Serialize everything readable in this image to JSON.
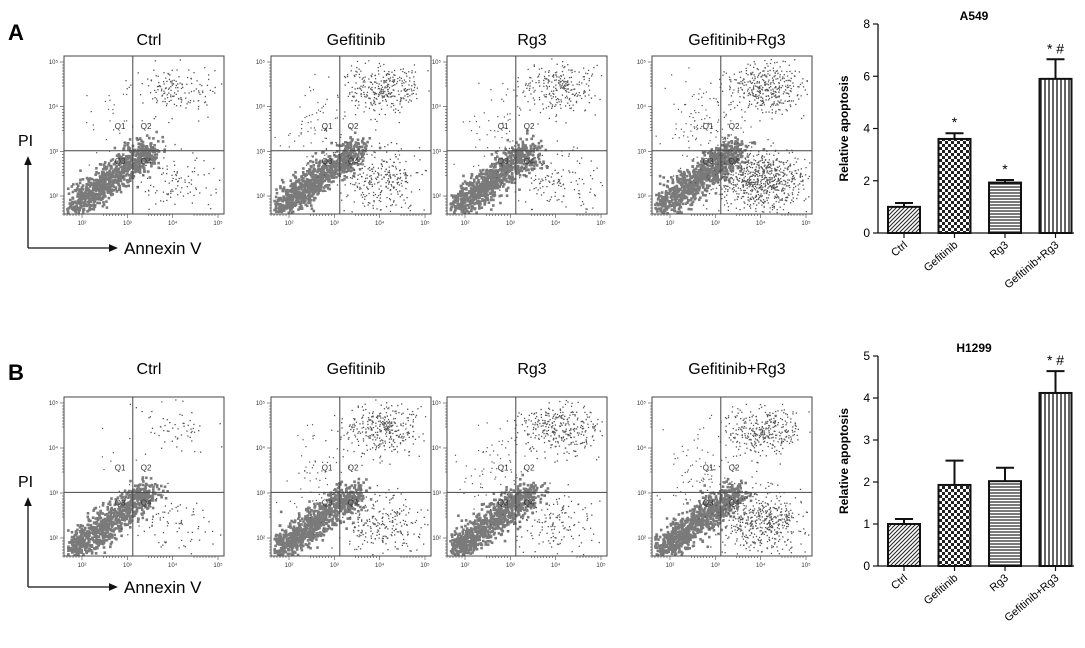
{
  "chart_data": [
    {
      "panel": "A",
      "type": "scatter",
      "subtype": "flow-cytometry-dot-plots",
      "plots": [
        {
          "title": "Ctrl",
          "quadrants": [
            "Q1",
            "Q2",
            "Q3",
            "Q4"
          ]
        },
        {
          "title": "Gefitinib",
          "quadrants": [
            "Q1",
            "Q2",
            "Q3",
            "Q4"
          ]
        },
        {
          "title": "Rg3",
          "quadrants": [
            "Q1",
            "Q2",
            "Q3",
            "Q4"
          ]
        },
        {
          "title": "Gefitinib+Rg3",
          "quadrants": [
            "Q1",
            "Q2",
            "Q3",
            "Q4"
          ]
        }
      ],
      "xlabel": "Annexin V",
      "ylabel": "PI",
      "xtick_labels": [
        "10²",
        "10³",
        "10⁴",
        "10⁵"
      ],
      "ytick_labels": [
        "10²",
        "10³",
        "10⁴",
        "10⁵"
      ]
    },
    {
      "panel": "A",
      "type": "bar",
      "title": "A549",
      "ylabel": "Relative apoptosis",
      "categories": [
        "Ctrl",
        "Gefitinib",
        "Rg3",
        "Gefitinib+Rg3"
      ],
      "values": [
        1.0,
        3.6,
        1.93,
        5.9
      ],
      "errors": [
        0.15,
        0.22,
        0.1,
        0.75
      ],
      "annotations": [
        "",
        "*",
        "*",
        "* #"
      ],
      "ylim": [
        0,
        8
      ],
      "yticks": [
        0,
        2,
        4,
        6,
        8
      ],
      "patterns": [
        "diagonal",
        "checker",
        "horizontal",
        "vertical"
      ]
    },
    {
      "panel": "B",
      "type": "scatter",
      "subtype": "flow-cytometry-dot-plots",
      "plots": [
        {
          "title": "Ctrl",
          "quadrants": [
            "Q1",
            "Q2",
            "Q3",
            "Q4"
          ]
        },
        {
          "title": "Gefitinib",
          "quadrants": [
            "Q1",
            "Q2",
            "Q3",
            "Q4"
          ]
        },
        {
          "title": "Rg3",
          "quadrants": [
            "Q1",
            "Q2",
            "Q3",
            "Q4"
          ]
        },
        {
          "title": "Gefitinib+Rg3",
          "quadrants": [
            "Q1",
            "Q2",
            "Q3",
            "Q4"
          ]
        }
      ],
      "xlabel": "Annexin V",
      "ylabel": "PI",
      "xtick_labels": [
        "10²",
        "10³",
        "10⁴",
        "10⁵"
      ],
      "ytick_labels": [
        "10²",
        "10³",
        "10⁴",
        "10⁵"
      ]
    },
    {
      "panel": "B",
      "type": "bar",
      "title": "H1299",
      "ylabel": "Relative apoptosis",
      "categories": [
        "Ctrl",
        "Gefitinib",
        "Rg3",
        "Gefitinib+Rg3"
      ],
      "values": [
        1.0,
        1.93,
        2.02,
        4.12
      ],
      "errors": [
        0.12,
        0.58,
        0.32,
        0.52
      ],
      "annotations": [
        "",
        "",
        "",
        "* #"
      ],
      "ylim": [
        0,
        5
      ],
      "yticks": [
        0,
        1,
        2,
        3,
        4,
        5
      ],
      "patterns": [
        "diagonal",
        "checker",
        "horizontal",
        "vertical"
      ]
    }
  ]
}
